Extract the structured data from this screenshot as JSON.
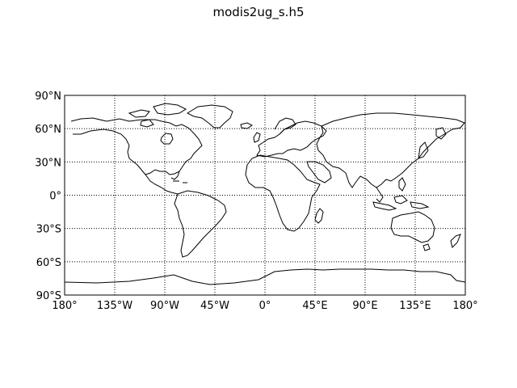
{
  "title": "modis2ug_s.h5",
  "map": {
    "projection": "cylindrical",
    "lon_range": [
      -180,
      180
    ],
    "lat_range": [
      -90,
      90
    ],
    "grid": "dotted",
    "meridians": [
      -180,
      -135,
      -90,
      -45,
      0,
      45,
      90,
      135,
      180
    ],
    "parallels": [
      90,
      60,
      30,
      0,
      -30,
      -60,
      -90
    ],
    "lat_labels": [
      "90°N",
      "60°N",
      "30°N",
      "0°",
      "30°S",
      "60°S",
      "90°S"
    ],
    "lon_labels": [
      "180°",
      "135°W",
      "90°W",
      "45°W",
      "0°",
      "45°E",
      "90°E",
      "135°E",
      "180°"
    ],
    "coastline_color": "#000000"
  }
}
